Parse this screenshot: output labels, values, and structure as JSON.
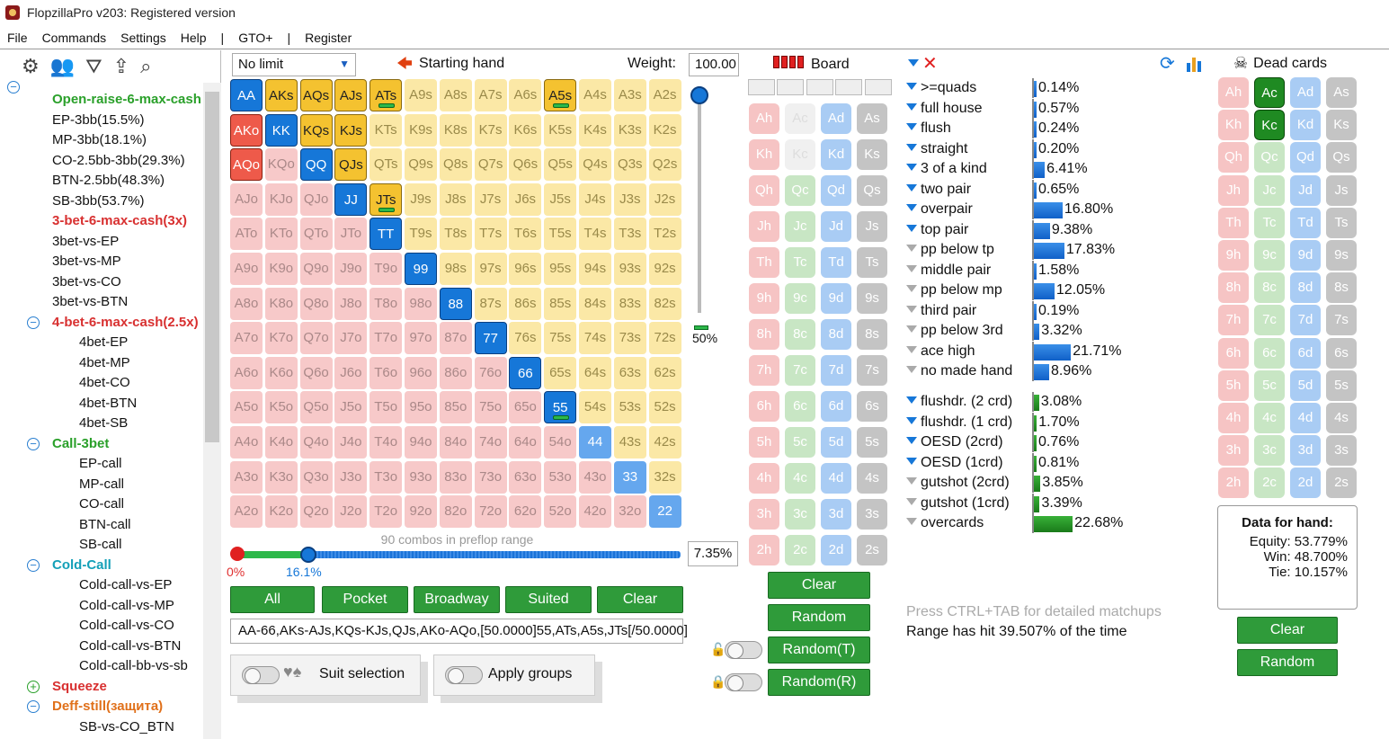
{
  "window": {
    "title": "FlopzillaPro v203: Registered version"
  },
  "menu": [
    "File",
    "Commands",
    "Settings",
    "Help",
    "|",
    "GTO+",
    "|",
    "Register"
  ],
  "tree": [
    {
      "label": "Open-raise-6-max-cash",
      "level": 1,
      "color": "green"
    },
    {
      "label": "EP-3bb(15.5%)",
      "level": 1
    },
    {
      "label": "MP-3bb(18.1%)",
      "level": 1
    },
    {
      "label": "CO-2.5bb-3bb(29.3%)",
      "level": 1
    },
    {
      "label": "BTN-2.5bb(48.3%)",
      "level": 1
    },
    {
      "label": "SB-3bb(53.7%)",
      "level": 1
    },
    {
      "label": "3-bet-6-max-cash(3x)",
      "level": 1,
      "color": "red"
    },
    {
      "label": "3bet-vs-EP",
      "level": 1
    },
    {
      "label": "3bet-vs-MP",
      "level": 1
    },
    {
      "label": "3bet-vs-CO",
      "level": 1
    },
    {
      "label": "3bet-vs-BTN",
      "level": 1
    },
    {
      "label": "4-bet-6-max-cash(2.5x)",
      "level": 1,
      "color": "red",
      "toggle": "minus"
    },
    {
      "label": "4bet-EP",
      "level": 2
    },
    {
      "label": "4bet-MP",
      "level": 2
    },
    {
      "label": "4bet-CO",
      "level": 2
    },
    {
      "label": "4bet-BTN",
      "level": 2
    },
    {
      "label": "4bet-SB",
      "level": 2
    },
    {
      "label": "Call-3bet",
      "level": 1,
      "color": "green",
      "toggle": "minus"
    },
    {
      "label": "EP-call",
      "level": 2
    },
    {
      "label": "MP-call",
      "level": 2
    },
    {
      "label": "CO-call",
      "level": 2
    },
    {
      "label": "BTN-call",
      "level": 2
    },
    {
      "label": "SB-call",
      "level": 2
    },
    {
      "label": "Cold-Call",
      "level": 1,
      "color": "teal",
      "toggle": "minus"
    },
    {
      "label": "Cold-call-vs-EP",
      "level": 2
    },
    {
      "label": "Cold-call-vs-MP",
      "level": 2
    },
    {
      "label": "Cold-call-vs-CO",
      "level": 2
    },
    {
      "label": "Cold-call-vs-BTN",
      "level": 2
    },
    {
      "label": "Cold-call-bb-vs-sb",
      "level": 2
    },
    {
      "label": "Squeeze",
      "level": 1,
      "color": "red",
      "toggle": "plus"
    },
    {
      "label": "Deff-still(защита)",
      "level": 1,
      "color": "orange",
      "toggle": "minus"
    },
    {
      "label": "SB-vs-CO_BTN",
      "level": 2
    }
  ],
  "toolbar": {
    "game": "No limit",
    "starting_hand": "Starting hand",
    "weight_label": "Weight:",
    "weight_value": "100.00"
  },
  "grid": {
    "ranks": [
      "A",
      "K",
      "Q",
      "J",
      "T",
      "9",
      "8",
      "7",
      "6",
      "5",
      "4",
      "3",
      "2"
    ],
    "selected": [
      "AA",
      "AKs",
      "AQs",
      "AJs",
      "ATs",
      "A5s",
      "AKo",
      "KK",
      "KQs",
      "KJs",
      "AQo",
      "QQ",
      "QJs",
      "JJ",
      "JTs",
      "TT",
      "99",
      "88",
      "77",
      "66",
      "55"
    ],
    "half_weight": [
      "ATs",
      "A5s",
      "JTs",
      "55"
    ],
    "highlighted": [
      "44",
      "33",
      "22"
    ]
  },
  "weight_slider": {
    "pct_label": "50%"
  },
  "range": {
    "combos_label": "90 combos in preflop range",
    "min_label": "0%",
    "max_label": "16.1%",
    "pct": "7.35%",
    "text": "AA-66,AKs-AJs,KQs-KJs,QJs,AKo-AQo,[50.0000]55,ATs,A5s,JTs[/50.0000]"
  },
  "buttons": {
    "all": "All",
    "pocket": "Pocket",
    "broadway": "Broadway",
    "suited": "Suited",
    "clear": "Clear"
  },
  "toggles": {
    "suit_selection": "Suit selection",
    "apply_groups": "Apply groups"
  },
  "board": {
    "title": "Board",
    "ranks": [
      "A",
      "K",
      "Q",
      "J",
      "T",
      "9",
      "8",
      "7",
      "6",
      "5",
      "4",
      "3",
      "2"
    ],
    "suits": [
      "h",
      "c",
      "d",
      "s"
    ],
    "dead": [
      "Ac",
      "Kc"
    ]
  },
  "board_buttons": {
    "clear": "Clear",
    "random": "Random",
    "random_t": "Random(T)",
    "random_r": "Random(R)"
  },
  "stats": [
    {
      "label": ">=quads",
      "value": "0.14%",
      "pct": 0.14,
      "filter": "blue"
    },
    {
      "label": "full house",
      "value": "0.57%",
      "pct": 0.57,
      "filter": "blue"
    },
    {
      "label": "flush",
      "value": "0.24%",
      "pct": 0.24,
      "filter": "blue"
    },
    {
      "label": "straight",
      "value": "0.20%",
      "pct": 0.2,
      "filter": "blue"
    },
    {
      "label": "3 of a kind",
      "value": "6.41%",
      "pct": 6.41,
      "filter": "blue"
    },
    {
      "label": "two pair",
      "value": "0.65%",
      "pct": 0.65,
      "filter": "blue"
    },
    {
      "label": "overpair",
      "value": "16.80%",
      "pct": 16.8,
      "filter": "blue"
    },
    {
      "label": "top pair",
      "value": "9.38%",
      "pct": 9.38,
      "filter": "blue"
    },
    {
      "label": "pp below tp",
      "value": "17.83%",
      "pct": 17.83,
      "filter": "gray"
    },
    {
      "label": "middle pair",
      "value": "1.58%",
      "pct": 1.58,
      "filter": "gray"
    },
    {
      "label": "pp below mp",
      "value": "12.05%",
      "pct": 12.05,
      "filter": "gray"
    },
    {
      "label": "third pair",
      "value": "0.19%",
      "pct": 0.19,
      "filter": "gray"
    },
    {
      "label": "pp below 3rd",
      "value": "3.32%",
      "pct": 3.32,
      "filter": "gray"
    },
    {
      "label": "ace high",
      "value": "21.71%",
      "pct": 21.71,
      "filter": "gray"
    },
    {
      "label": "no made hand",
      "value": "8.96%",
      "pct": 8.96,
      "filter": "gray"
    }
  ],
  "draws": [
    {
      "label": "flushdr. (2 crd)",
      "value": "3.08%",
      "pct": 3.08,
      "filter": "blue"
    },
    {
      "label": "flushdr. (1 crd)",
      "value": "1.70%",
      "pct": 1.7,
      "filter": "blue"
    },
    {
      "label": "OESD (2crd)",
      "value": "0.76%",
      "pct": 0.76,
      "filter": "blue"
    },
    {
      "label": "OESD (1crd)",
      "value": "0.81%",
      "pct": 0.81,
      "filter": "blue"
    },
    {
      "label": "gutshot (2crd)",
      "value": "3.85%",
      "pct": 3.85,
      "filter": "gray"
    },
    {
      "label": "gutshot (1crd)",
      "value": "3.39%",
      "pct": 3.39,
      "filter": "gray"
    },
    {
      "label": "overcards",
      "value": "22.68%",
      "pct": 22.68,
      "filter": "gray"
    }
  ],
  "info": {
    "ctrl_tab": "Press CTRL+TAB for detailed matchups",
    "range_hit": "Range has hit 39.507% of the time"
  },
  "dead": {
    "title": "Dead cards",
    "clear": "Clear",
    "random": "Random"
  },
  "data_for_hand": {
    "title": "Data for hand:",
    "equity": "Equity: 53.779%",
    "win": "Win: 48.700%",
    "tie": "Tie: 10.157%"
  }
}
